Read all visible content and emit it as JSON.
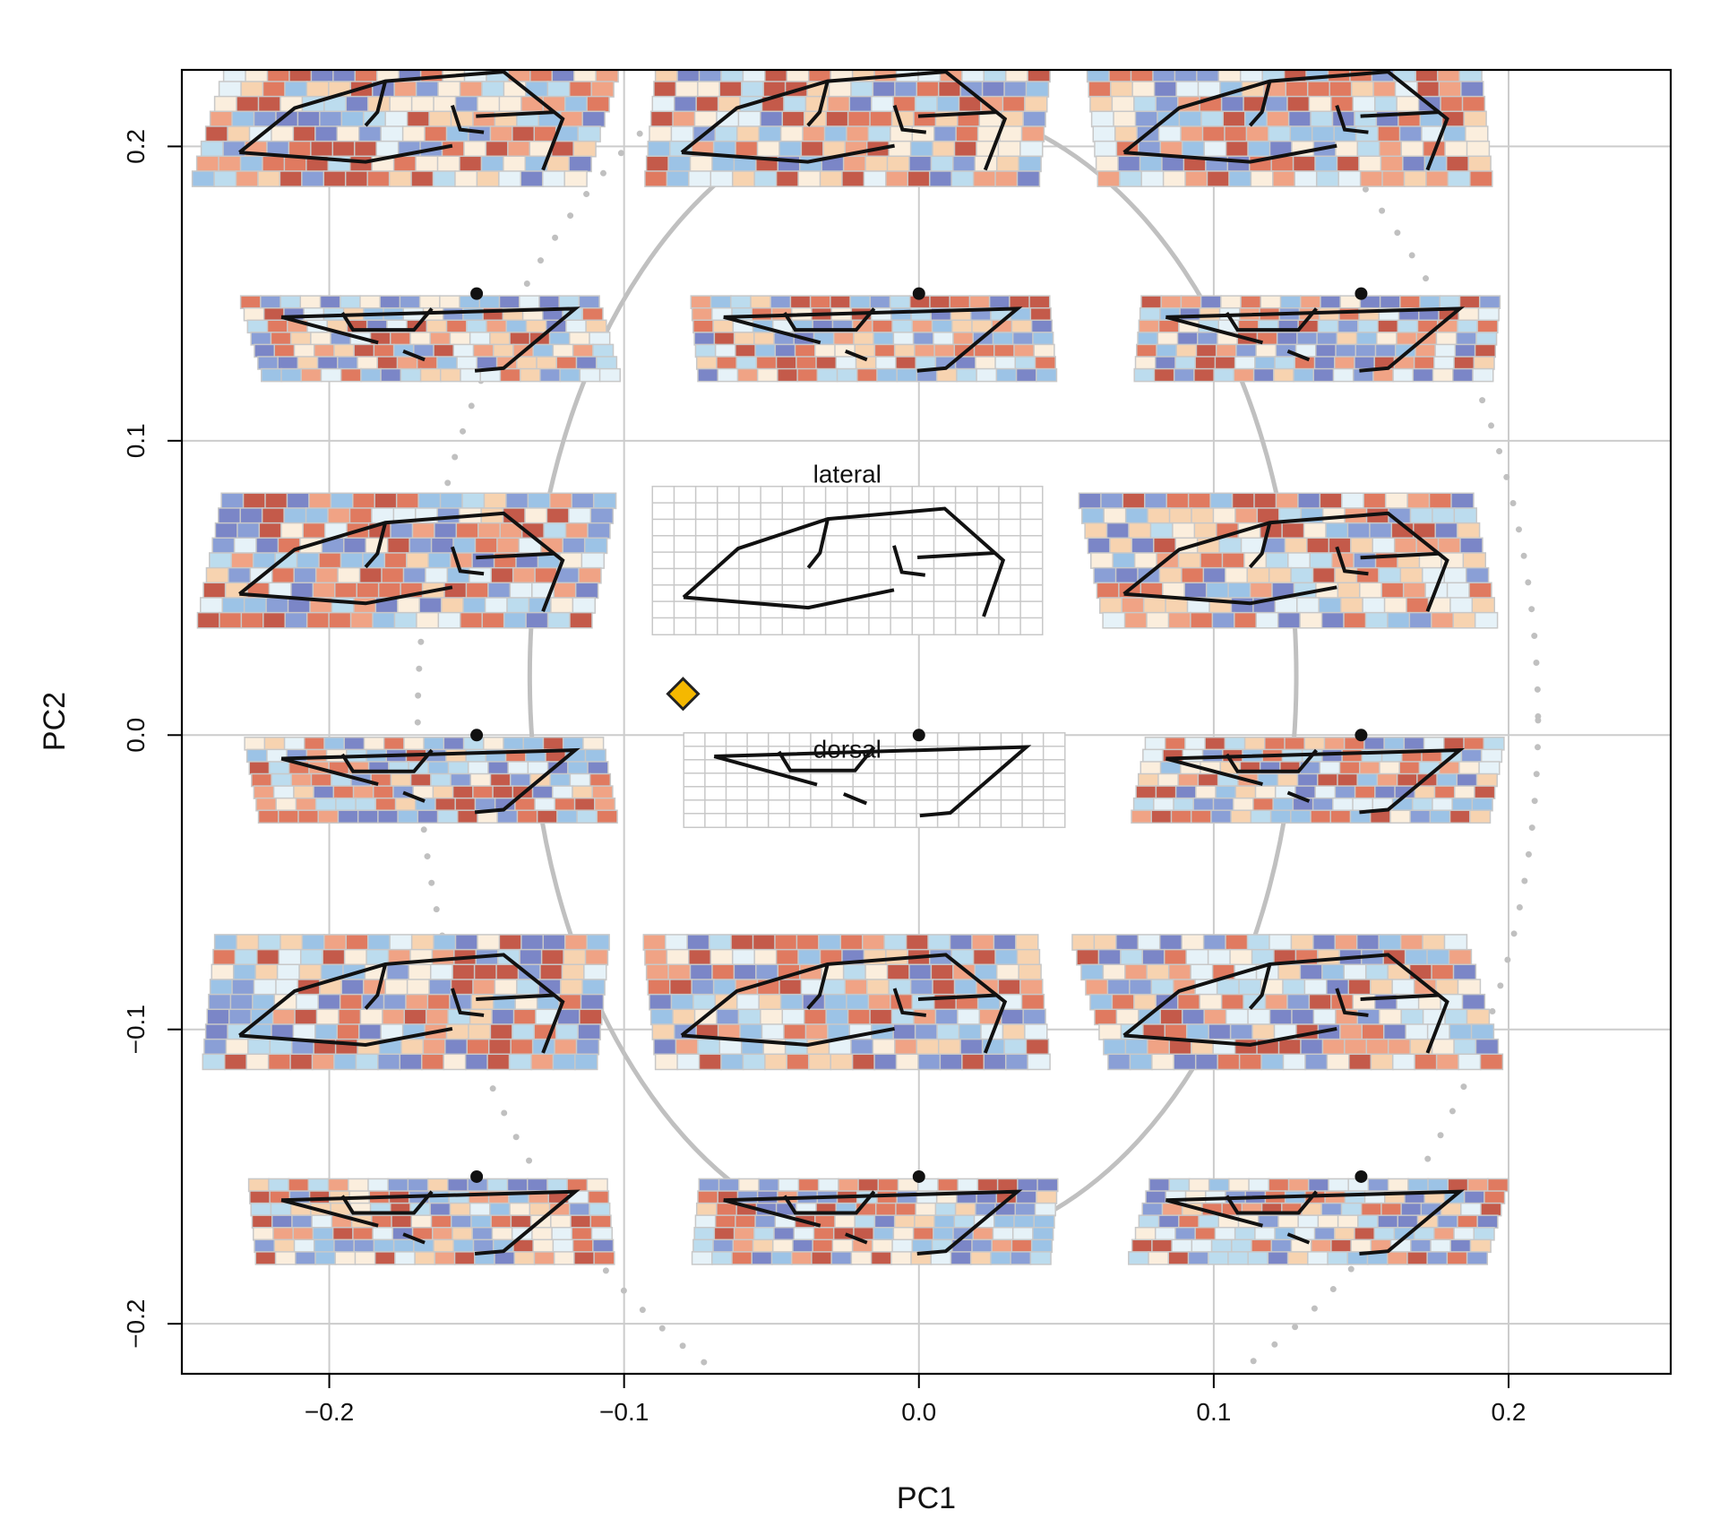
{
  "chart_data": {
    "type": "scatter",
    "title": "",
    "xlabel": "PC1",
    "ylabel": "PC2",
    "xlim": [
      -0.25,
      0.255
    ],
    "ylim": [
      -0.217,
      0.226
    ],
    "x_ticks": [
      -0.2,
      -0.1,
      0.0,
      0.1,
      0.2
    ],
    "y_ticks": [
      -0.2,
      -0.1,
      0.0,
      0.1,
      0.2
    ],
    "x_tick_labels": [
      "−0.2",
      "−0.1",
      "0.0",
      "0.1",
      "0.2"
    ],
    "y_tick_labels": [
      "−0.2",
      "−0.1",
      "0.0",
      "0.1",
      "0.2"
    ],
    "grid": true,
    "legend": "none",
    "colors": {
      "grid": "#cccccc",
      "axis": "#000000",
      "ellipse": "#c0c0c0",
      "marker": "#f5b800",
      "marker_edge": "#222222",
      "deform_red": "#d9634f",
      "deform_blue": "#8ea7d8"
    },
    "grid_points": {
      "x": [
        -0.15,
        0.0,
        0.15,
        -0.15,
        0.0,
        0.15,
        -0.15,
        0.0,
        0.15
      ],
      "y": [
        0.15,
        0.15,
        0.15,
        0.0,
        0.0,
        0.0,
        -0.15,
        -0.15,
        -0.15
      ]
    },
    "highlight_point": {
      "x": -0.08,
      "y": 0.014
    },
    "ellipse": {
      "cx": -0.002,
      "cy": 0.02,
      "rx": 0.13,
      "ry": 0.195
    },
    "ellipse_outer": {
      "cx": 0.02,
      "cy": 0.005,
      "rx": 0.19,
      "ry": 0.25
    },
    "panel_labels": {
      "lateral": "lateral",
      "dorsal": "dorsal"
    }
  }
}
